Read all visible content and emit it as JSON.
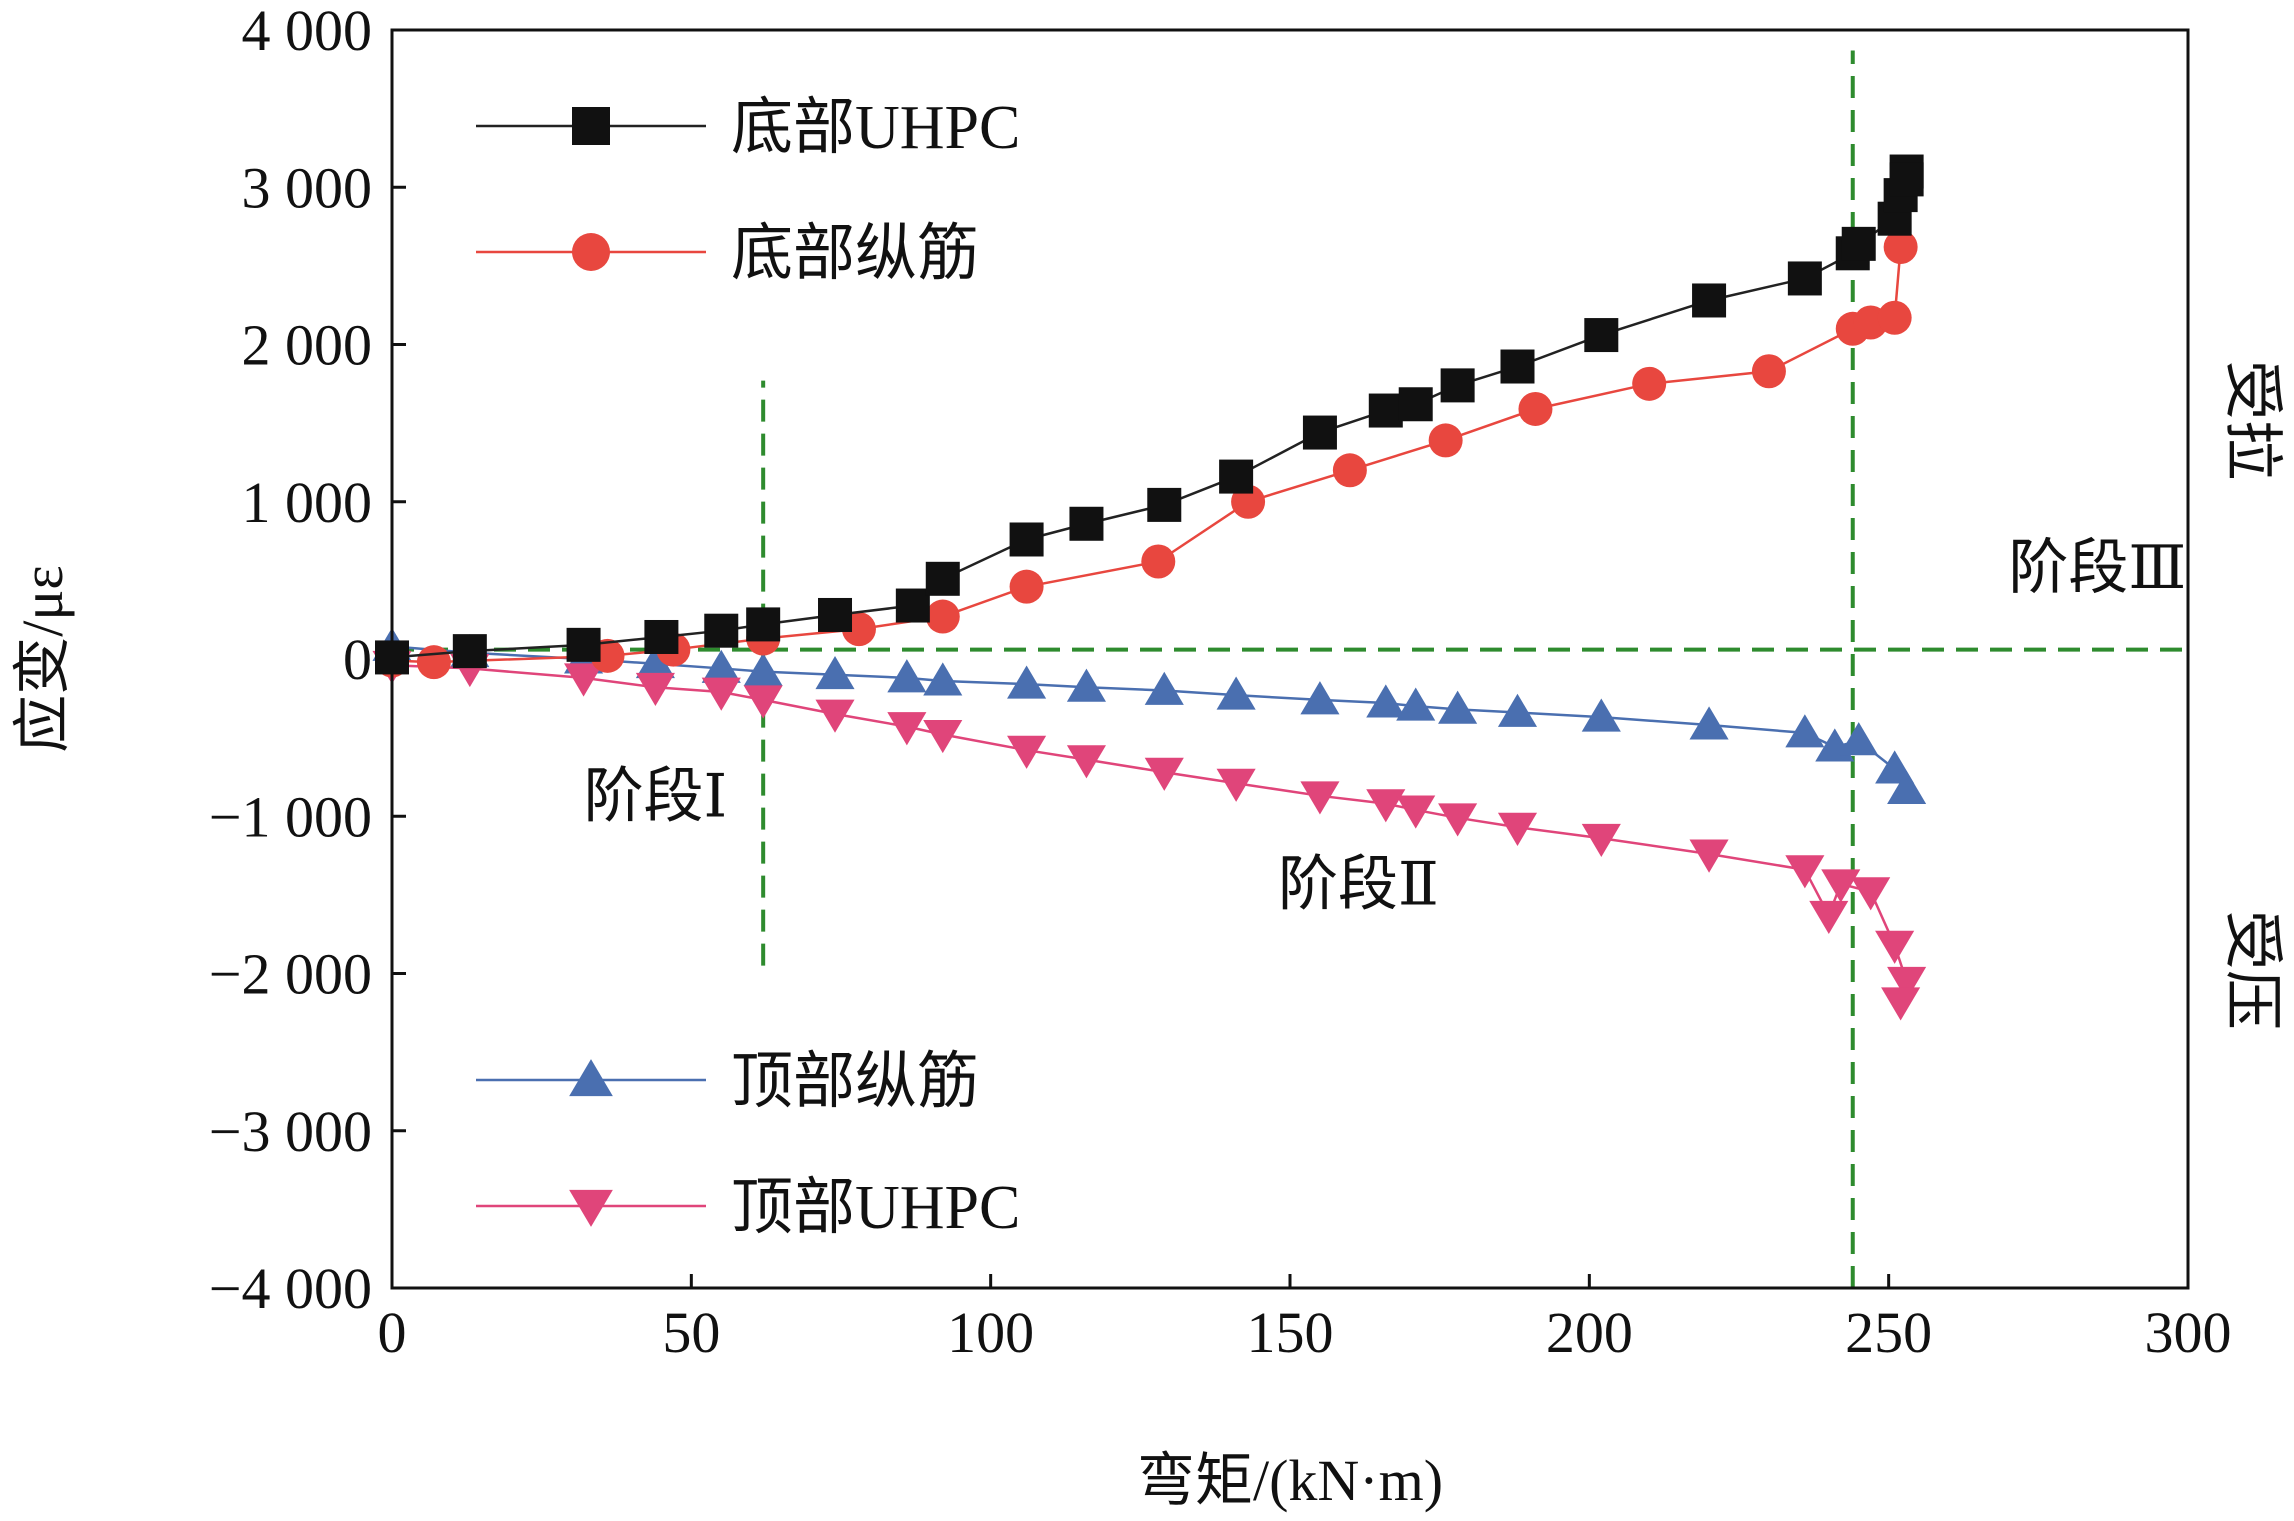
{
  "chart_data": {
    "type": "line",
    "xlabel": "弯矩/(kN·m)",
    "ylabel": "应变/με",
    "xlim": [
      0,
      300
    ],
    "ylim": [
      -4000,
      4000
    ],
    "xticks": [
      0,
      50,
      100,
      150,
      200,
      250,
      300
    ],
    "xtick_labels": [
      "0",
      "50",
      "100",
      "150",
      "200",
      "250",
      "300"
    ],
    "yticks": [
      4000,
      3000,
      2000,
      1000,
      0,
      -1000,
      -2000,
      -3000,
      -4000
    ],
    "ytick_labels": [
      "4 000",
      "3 000",
      "2 000",
      "1 000",
      "0",
      "−1 000",
      "−2 000",
      "−3 000",
      "−4 000"
    ],
    "grid": false,
    "legend_top": "top-left",
    "legend_bottom": "bottom-left",
    "series": [
      {
        "name": "底部UHPC",
        "marker": "square",
        "color": "#111111",
        "line_color": "#222222",
        "x": [
          0,
          13,
          32,
          45,
          55,
          62,
          74,
          87,
          92,
          106,
          116,
          129,
          141,
          155,
          166,
          171,
          178,
          188,
          202,
          220,
          236,
          244,
          245,
          251,
          252,
          253,
          253
        ],
        "y": [
          10,
          50,
          90,
          140,
          180,
          220,
          280,
          340,
          510,
          760,
          860,
          980,
          1160,
          1440,
          1580,
          1620,
          1740,
          1860,
          2060,
          2280,
          2420,
          2580,
          2640,
          2800,
          2950,
          3100,
          3050
        ]
      },
      {
        "name": "底部纵筋",
        "marker": "circle",
        "color": "#e8473f",
        "line_color": "#e8473f",
        "x": [
          0,
          7,
          36,
          47,
          62,
          78,
          92,
          106,
          128,
          143,
          160,
          176,
          191,
          210,
          230,
          244,
          247,
          251,
          252
        ],
        "y": [
          -10,
          -20,
          20,
          60,
          130,
          190,
          270,
          460,
          620,
          1000,
          1200,
          1390,
          1590,
          1750,
          1830,
          2100,
          2140,
          2170,
          2620
        ]
      },
      {
        "name": "顶部纵筋",
        "marker": "triangle-up",
        "color": "#4a6fb0",
        "line_color": "#4a6fb0",
        "x": [
          0,
          13,
          32,
          44,
          55,
          62,
          74,
          86,
          92,
          106,
          116,
          129,
          141,
          155,
          166,
          171,
          178,
          188,
          202,
          220,
          236,
          241,
          245,
          251,
          253
        ],
        "y": [
          80,
          40,
          0,
          -30,
          -60,
          -80,
          -100,
          -120,
          -140,
          -160,
          -180,
          -200,
          -230,
          -260,
          -280,
          -300,
          -320,
          -340,
          -370,
          -420,
          -470,
          -560,
          -520,
          -700,
          -830
        ]
      },
      {
        "name": "顶部UHPC",
        "marker": "triangle-down",
        "color": "#e0457a",
        "line_color": "#e0457a",
        "x": [
          0,
          13,
          32,
          44,
          55,
          62,
          74,
          86,
          92,
          106,
          116,
          129,
          141,
          155,
          166,
          171,
          178,
          188,
          202,
          220,
          236,
          240,
          242,
          247,
          251,
          253,
          252
        ],
        "y": [
          -40,
          -60,
          -120,
          -180,
          -210,
          -260,
          -350,
          -430,
          -480,
          -580,
          -640,
          -720,
          -790,
          -870,
          -920,
          -960,
          -1010,
          -1070,
          -1140,
          -1240,
          -1340,
          -1630,
          -1430,
          -1480,
          -1820,
          -2050,
          -2180
        ]
      }
    ],
    "reference_lines": [
      {
        "orientation": "vertical",
        "x": 62,
        "y_from": -1950,
        "y_to": 1770,
        "color": "#2e8b2e",
        "style": "dashed"
      },
      {
        "orientation": "vertical",
        "x": 244,
        "y_from": -4000,
        "y_to": 3870,
        "color": "#2e8b2e",
        "style": "dashed"
      },
      {
        "orientation": "horizontal",
        "y": 60,
        "x_from": 0,
        "x_to": 300,
        "color": "#2e8b2e",
        "style": "dashed"
      }
    ],
    "annotations": [
      {
        "text": "阶段Ⅰ",
        "x": 32,
        "y": -1000
      },
      {
        "text": "阶段Ⅱ",
        "x": 148,
        "y": -1560
      },
      {
        "text": "阶段Ⅲ",
        "x": 270,
        "y": 450
      }
    ],
    "side_labels": {
      "tension": "受拉",
      "compression": "受压"
    }
  }
}
